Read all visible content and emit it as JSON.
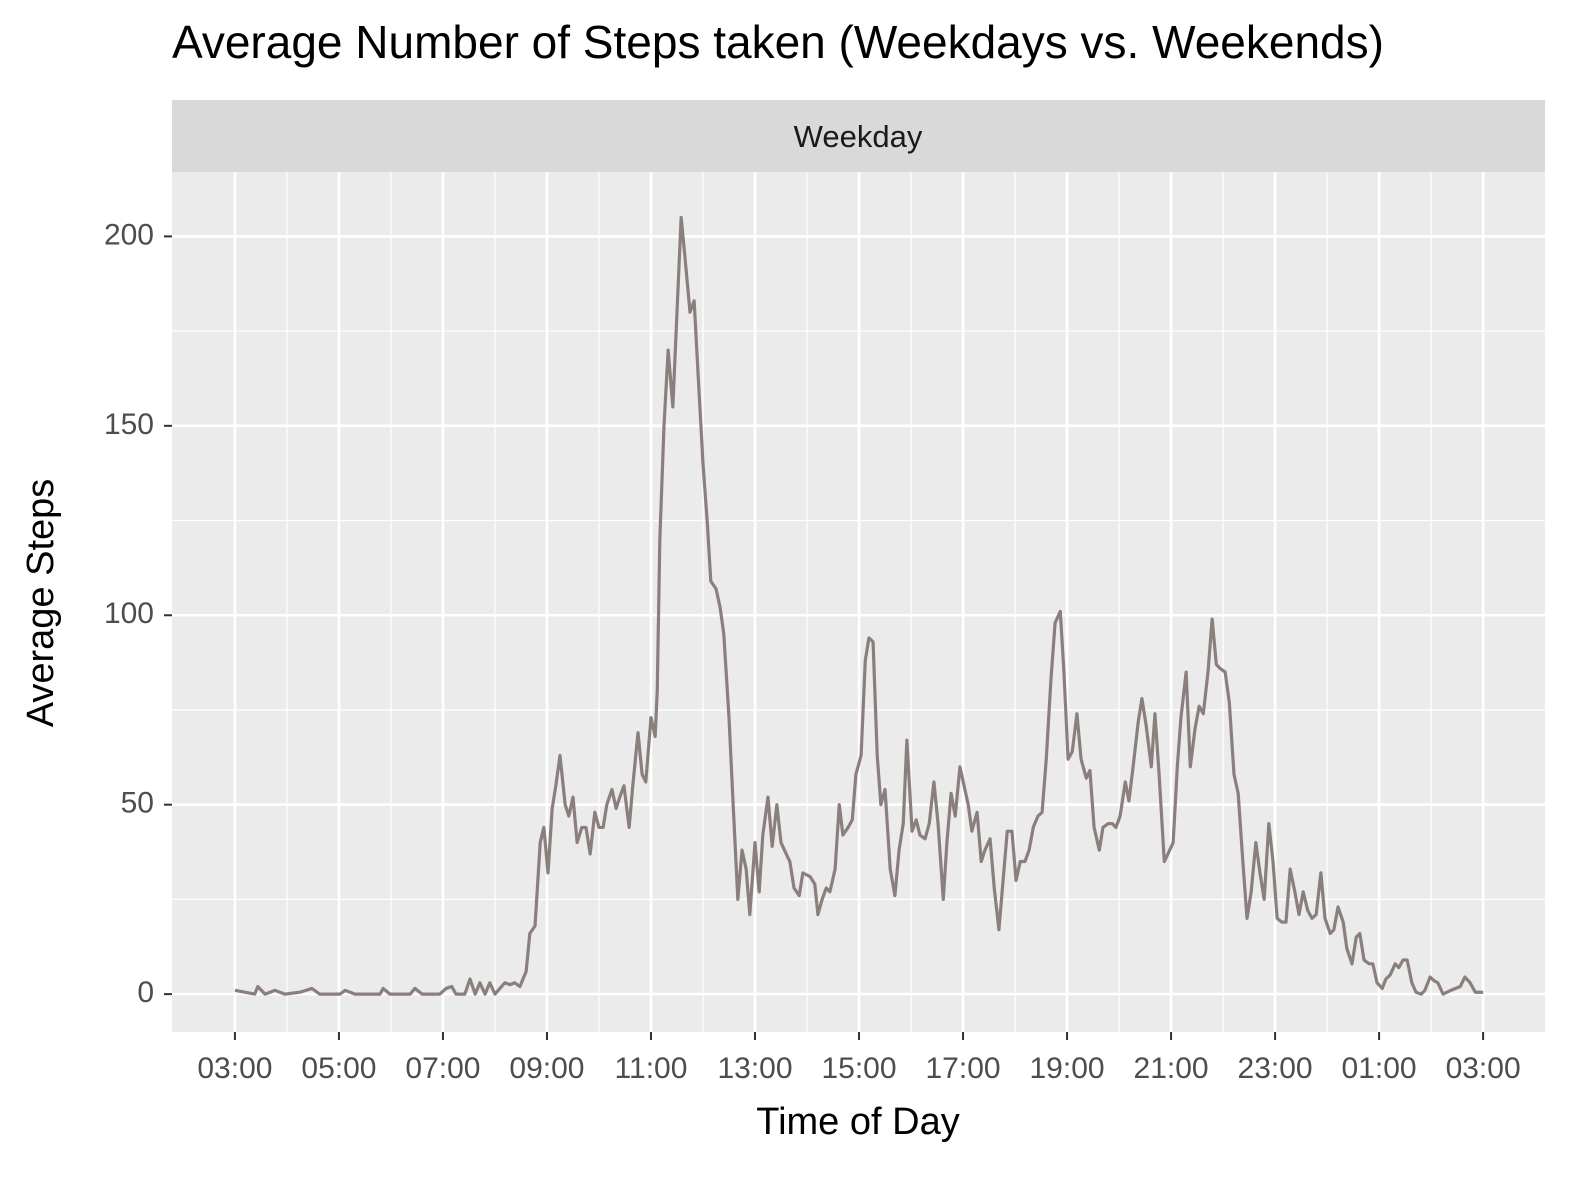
{
  "chart_data": {
    "type": "line",
    "title": "Average Number of Steps taken (Weekdays vs. Weekends)",
    "facet": "Weekday",
    "x_label": "Time of Day",
    "y_label": "Average Steps",
    "grid": true,
    "xlim": [
      1.79,
      28.19
    ],
    "ylim": [
      -10,
      217
    ],
    "xticks": [
      {
        "value": 3,
        "label": "03:00"
      },
      {
        "value": 5,
        "label": "05:00"
      },
      {
        "value": 7,
        "label": "07:00"
      },
      {
        "value": 9,
        "label": "09:00"
      },
      {
        "value": 11,
        "label": "11:00"
      },
      {
        "value": 13,
        "label": "13:00"
      },
      {
        "value": 15,
        "label": "15:00"
      },
      {
        "value": 17,
        "label": "17:00"
      },
      {
        "value": 19,
        "label": "19:00"
      },
      {
        "value": 21,
        "label": "21:00"
      },
      {
        "value": 23,
        "label": "23:00"
      },
      {
        "value": 25,
        "label": "01:00"
      },
      {
        "value": 27,
        "label": "03:00"
      }
    ],
    "yticks": [
      0,
      50,
      100,
      150,
      200
    ],
    "x": [
      3.0,
      3.19,
      3.38,
      3.44,
      3.58,
      3.77,
      3.96,
      4.25,
      4.48,
      4.63,
      5.02,
      5.12,
      5.31,
      5.79,
      5.85,
      5.98,
      6.37,
      6.46,
      6.6,
      6.94,
      7.06,
      7.17,
      7.25,
      7.42,
      7.52,
      7.62,
      7.71,
      7.81,
      7.9,
      8.0,
      8.19,
      8.29,
      8.38,
      8.48,
      8.6,
      8.67,
      8.77,
      8.87,
      8.94,
      9.02,
      9.1,
      9.17,
      9.25,
      9.35,
      9.42,
      9.5,
      9.58,
      9.67,
      9.75,
      9.83,
      9.92,
      10.0,
      10.08,
      10.15,
      10.25,
      10.33,
      10.4,
      10.48,
      10.58,
      10.65,
      10.75,
      10.83,
      10.9,
      11.0,
      11.08,
      11.12,
      11.17,
      11.25,
      11.33,
      11.42,
      11.5,
      11.58,
      11.65,
      11.75,
      11.83,
      11.9,
      12.0,
      12.08,
      12.15,
      12.25,
      12.33,
      12.4,
      12.5,
      12.58,
      12.67,
      12.75,
      12.83,
      12.9,
      13.0,
      13.08,
      13.15,
      13.25,
      13.33,
      13.42,
      13.5,
      13.6,
      13.67,
      13.75,
      13.85,
      13.92,
      14.06,
      14.15,
      14.21,
      14.29,
      14.37,
      14.44,
      14.54,
      14.62,
      14.69,
      14.79,
      14.87,
      14.94,
      15.04,
      15.12,
      15.19,
      15.27,
      15.35,
      15.42,
      15.5,
      15.6,
      15.69,
      15.77,
      15.85,
      15.92,
      16.02,
      16.1,
      16.17,
      16.27,
      16.35,
      16.44,
      16.52,
      16.62,
      16.69,
      16.77,
      16.85,
      16.94,
      17.02,
      17.1,
      17.17,
      17.27,
      17.35,
      17.42,
      17.52,
      17.6,
      17.69,
      17.77,
      17.85,
      17.94,
      18.02,
      18.1,
      18.19,
      18.27,
      18.35,
      18.44,
      18.52,
      18.6,
      18.69,
      18.77,
      18.87,
      18.94,
      19.02,
      19.1,
      19.19,
      19.27,
      19.37,
      19.44,
      19.52,
      19.62,
      19.69,
      19.79,
      19.87,
      19.94,
      20.02,
      20.12,
      20.19,
      20.27,
      20.37,
      20.44,
      20.52,
      20.62,
      20.69,
      20.77,
      20.87,
      20.94,
      21.04,
      21.12,
      21.19,
      21.29,
      21.37,
      21.46,
      21.54,
      21.62,
      21.71,
      21.79,
      21.87,
      21.94,
      22.04,
      22.12,
      22.21,
      22.29,
      22.38,
      22.46,
      22.54,
      22.63,
      22.71,
      22.79,
      22.88,
      22.96,
      23.04,
      23.13,
      23.21,
      23.29,
      23.38,
      23.46,
      23.54,
      23.63,
      23.71,
      23.79,
      23.88,
      23.96,
      24.06,
      24.13,
      24.21,
      24.31,
      24.38,
      24.48,
      24.56,
      24.63,
      24.71,
      24.81,
      24.88,
      24.96,
      25.06,
      25.13,
      25.21,
      25.31,
      25.38,
      25.46,
      25.54,
      25.63,
      25.71,
      25.81,
      25.88,
      25.98,
      26.06,
      26.13,
      26.23,
      26.38,
      26.56,
      26.65,
      26.75,
      26.85,
      27.0
    ],
    "series": [
      {
        "color": "#8b7f7d",
        "values": [
          1,
          0.5,
          0,
          2,
          0,
          1,
          0,
          0.5,
          1.5,
          0,
          0,
          1,
          0,
          0,
          1.5,
          0,
          0,
          1.5,
          0,
          0,
          1.5,
          2,
          0,
          0,
          4,
          0,
          3,
          0,
          3,
          0,
          3,
          2.5,
          3,
          2,
          6,
          16,
          18,
          40,
          44,
          32,
          49,
          55,
          63,
          50,
          47,
          52,
          40,
          44,
          44,
          37,
          48,
          44,
          44,
          50,
          54,
          49,
          52,
          55,
          44,
          55,
          69,
          58,
          56,
          73,
          68,
          80,
          120,
          150,
          170,
          155,
          180,
          205,
          195,
          180,
          183,
          165,
          140,
          125,
          109,
          107,
          102,
          95,
          73,
          50,
          25,
          38,
          33,
          21,
          40,
          27,
          42,
          52,
          39,
          50,
          40,
          37,
          35,
          28,
          26,
          32,
          31,
          29,
          21,
          25,
          28,
          27,
          33,
          50,
          42,
          44,
          46,
          58,
          63,
          88,
          94,
          93,
          63,
          50,
          54,
          33,
          26,
          38,
          45,
          67,
          43,
          46,
          42,
          41,
          45,
          56,
          45,
          25,
          40,
          53,
          47,
          60,
          55,
          50,
          43,
          48,
          35,
          38,
          41,
          28,
          17,
          30,
          43,
          43,
          30,
          35,
          35,
          38,
          44,
          47,
          48,
          62,
          83,
          98,
          101,
          85,
          62,
          64,
          74,
          62,
          57,
          59,
          44,
          38,
          44,
          45,
          45,
          44,
          47,
          56,
          51,
          60,
          72,
          78,
          71,
          60,
          74,
          58,
          35,
          37,
          40,
          60,
          73,
          85,
          60,
          70,
          76,
          74,
          85,
          99,
          87,
          86,
          85,
          77,
          58,
          53,
          35,
          20,
          27,
          40,
          32,
          25,
          45,
          35,
          20,
          19,
          19,
          33,
          27,
          21,
          27,
          22,
          20,
          21,
          32,
          20,
          16,
          17,
          23,
          19,
          12,
          8,
          15,
          16,
          9,
          8,
          8,
          3,
          1.5,
          4,
          5,
          8,
          7,
          9,
          9,
          3,
          0.5,
          0,
          1,
          4.5,
          3.5,
          3,
          0,
          1,
          2,
          4.5,
          3,
          0.5,
          0.5
        ]
      }
    ]
  }
}
